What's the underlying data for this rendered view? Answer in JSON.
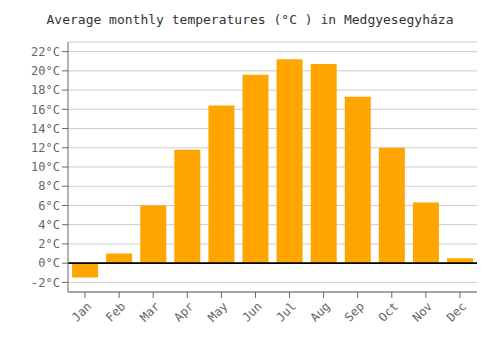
{
  "chart_data": {
    "type": "bar",
    "title": "Average monthly temperatures (°C ) in Medgyesegyháza",
    "categories": [
      "Jan",
      "Feb",
      "Mar",
      "Apr",
      "May",
      "Jun",
      "Jul",
      "Aug",
      "Sep",
      "Oct",
      "Nov",
      "Dec"
    ],
    "values": [
      -1.5,
      1.0,
      6.0,
      11.8,
      16.4,
      19.6,
      21.2,
      20.7,
      17.3,
      12.0,
      6.3,
      0.5
    ],
    "color": "#FFA500",
    "ylim": [
      -3,
      23
    ],
    "yticks": [
      {
        "value": -2,
        "label": "-2°C"
      },
      {
        "value": 0,
        "label": "0°C"
      },
      {
        "value": 2,
        "label": "2°C"
      },
      {
        "value": 4,
        "label": "4°C"
      },
      {
        "value": 6,
        "label": "6°C"
      },
      {
        "value": 8,
        "label": "8°C"
      },
      {
        "value": 10,
        "label": "10°C"
      },
      {
        "value": 12,
        "label": "12°C"
      },
      {
        "value": 14,
        "label": "14°C"
      },
      {
        "value": 16,
        "label": "16°C"
      },
      {
        "value": 18,
        "label": "18°C"
      },
      {
        "value": 20,
        "label": "20°C"
      },
      {
        "value": 22,
        "label": "22°C"
      }
    ],
    "grid": true
  }
}
